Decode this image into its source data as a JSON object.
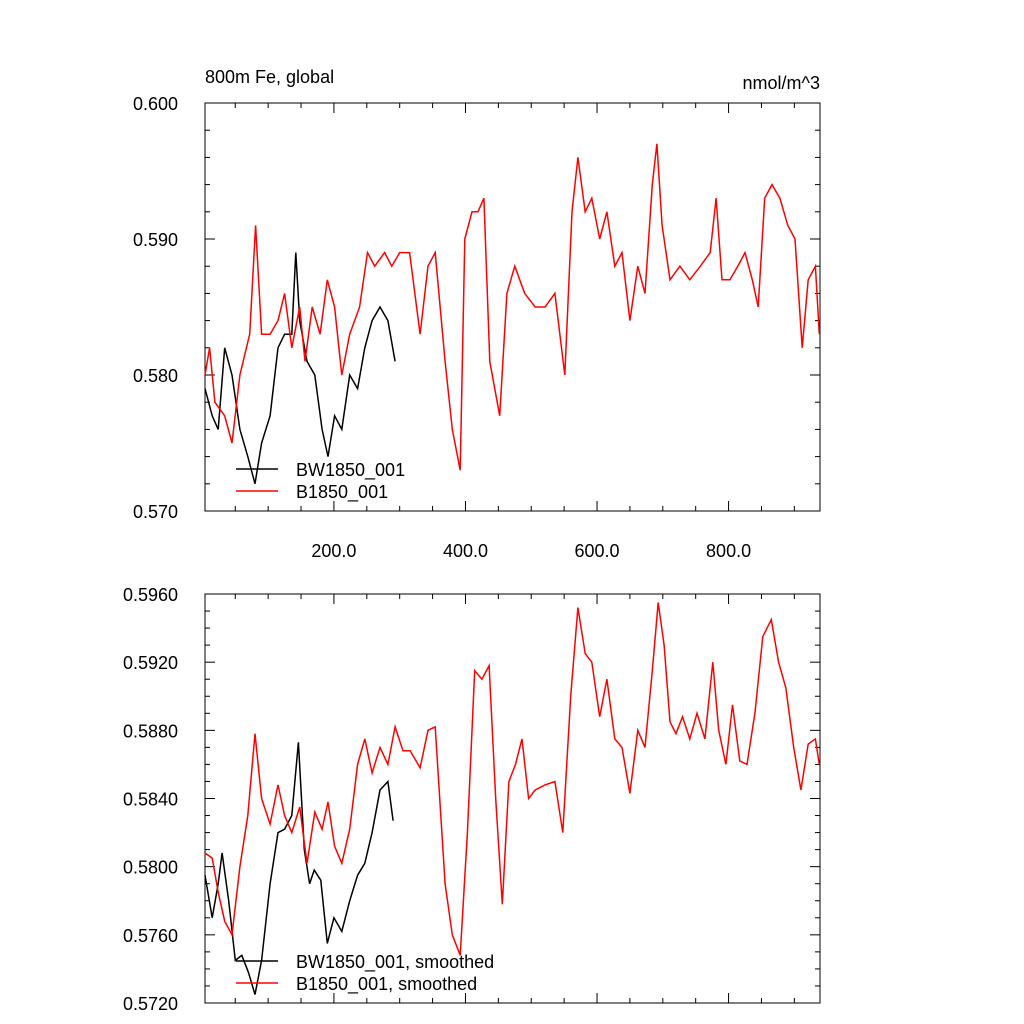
{
  "chart_data": [
    {
      "type": "line",
      "title": "800m Fe, global",
      "units": "nmol/m^3",
      "xlim": [
        4,
        939
      ],
      "ylim": [
        0.57,
        0.6
      ],
      "xticks": [
        {
          "value": 200,
          "label": "200.0"
        },
        {
          "value": 400,
          "label": "400.0"
        },
        {
          "value": 600,
          "label": "600.0"
        },
        {
          "value": 800,
          "label": "800.0"
        }
      ],
      "yticks": [
        {
          "value": 0.57,
          "label": "0.570"
        },
        {
          "value": 0.58,
          "label": "0.580"
        },
        {
          "value": 0.59,
          "label": "0.590"
        },
        {
          "value": 0.6,
          "label": "0.600"
        }
      ],
      "legend": "lower left",
      "series": [
        {
          "name": "BW1850_001",
          "color": "#000000",
          "x": [
            4,
            15,
            24,
            34,
            45,
            57,
            69,
            80,
            90,
            103,
            115,
            125,
            136,
            142,
            148,
            159,
            171,
            182,
            191,
            201,
            212,
            224,
            236,
            247,
            258,
            270,
            282,
            293
          ],
          "values": [
            0.579,
            0.577,
            0.576,
            0.582,
            0.58,
            0.576,
            0.574,
            0.572,
            0.575,
            0.577,
            0.582,
            0.583,
            0.583,
            0.589,
            0.584,
            0.581,
            0.58,
            0.576,
            0.574,
            0.577,
            0.576,
            0.58,
            0.579,
            0.582,
            0.584,
            0.585,
            0.584,
            0.581
          ]
        },
        {
          "name": "B1850_001",
          "color": "#ff0000",
          "x": [
            4,
            11,
            19,
            34,
            45,
            57,
            72,
            81,
            90,
            103,
            115,
            125,
            136,
            148,
            156,
            167,
            179,
            190,
            201,
            212,
            224,
            239,
            251,
            262,
            277,
            288,
            300,
            315,
            331,
            343,
            354,
            369,
            380,
            392,
            399,
            410,
            419,
            428,
            437,
            452,
            463,
            475,
            490,
            506,
            521,
            536,
            551,
            562,
            571,
            582,
            592,
            604,
            615,
            627,
            638,
            650,
            662,
            673,
            684,
            691,
            699,
            711,
            726,
            741,
            757,
            772,
            781,
            790,
            802,
            814,
            825,
            836,
            845,
            855,
            866,
            878,
            890,
            901,
            912,
            921,
            932,
            938
          ],
          "values": [
            0.58,
            0.582,
            0.578,
            0.577,
            0.575,
            0.58,
            0.583,
            0.591,
            0.583,
            0.583,
            0.584,
            0.586,
            0.582,
            0.585,
            0.581,
            0.585,
            0.583,
            0.587,
            0.585,
            0.58,
            0.583,
            0.585,
            0.589,
            0.588,
            0.589,
            0.588,
            0.589,
            0.589,
            0.583,
            0.588,
            0.589,
            0.581,
            0.576,
            0.573,
            0.59,
            0.592,
            0.592,
            0.593,
            0.581,
            0.577,
            0.586,
            0.588,
            0.586,
            0.585,
            0.585,
            0.586,
            0.58,
            0.592,
            0.596,
            0.592,
            0.593,
            0.59,
            0.592,
            0.588,
            0.589,
            0.584,
            0.588,
            0.586,
            0.594,
            0.597,
            0.591,
            0.587,
            0.588,
            0.587,
            0.588,
            0.589,
            0.593,
            0.587,
            0.587,
            0.588,
            0.589,
            0.587,
            0.585,
            0.593,
            0.594,
            0.593,
            0.591,
            0.59,
            0.582,
            0.587,
            0.588,
            0.583
          ]
        }
      ]
    },
    {
      "type": "line",
      "xlim": [
        4,
        939
      ],
      "ylim": [
        0.572,
        0.596
      ],
      "xticks": [
        200,
        400,
        600,
        800
      ],
      "yticks": [
        {
          "value": 0.572,
          "label": "0.5720"
        },
        {
          "value": 0.576,
          "label": "0.5760"
        },
        {
          "value": 0.58,
          "label": "0.5800"
        },
        {
          "value": 0.584,
          "label": "0.5840"
        },
        {
          "value": 0.588,
          "label": "0.5880"
        },
        {
          "value": 0.592,
          "label": "0.5920"
        },
        {
          "value": 0.596,
          "label": "0.5960"
        }
      ],
      "legend": "lower left",
      "series": [
        {
          "name": "BW1850_001, smoothed",
          "color": "#000000",
          "x": [
            4,
            15,
            24,
            30,
            40,
            50,
            60,
            70,
            80,
            90,
            103,
            115,
            125,
            136,
            146,
            155,
            163,
            170,
            180,
            190,
            200,
            212,
            224,
            236,
            247,
            258,
            270,
            282,
            290
          ],
          "values": [
            0.5795,
            0.577,
            0.579,
            0.5808,
            0.578,
            0.5745,
            0.5748,
            0.5738,
            0.5725,
            0.5745,
            0.579,
            0.582,
            0.5822,
            0.583,
            0.5873,
            0.581,
            0.579,
            0.5798,
            0.5792,
            0.5755,
            0.577,
            0.5762,
            0.578,
            0.5795,
            0.5802,
            0.582,
            0.5845,
            0.585,
            0.5827
          ]
        },
        {
          "name": "B1850_001, smoothed",
          "color": "#ff0000",
          "x": [
            4,
            15,
            24,
            34,
            45,
            57,
            69,
            80,
            90,
            103,
            115,
            125,
            136,
            148,
            159,
            171,
            182,
            191,
            201,
            212,
            224,
            236,
            247,
            258,
            270,
            282,
            293,
            305,
            316,
            331,
            343,
            354,
            369,
            380,
            392,
            403,
            414,
            425,
            436,
            446,
            456,
            466,
            476,
            486,
            496,
            506,
            521,
            536,
            548,
            560,
            571,
            582,
            592,
            604,
            615,
            627,
            638,
            650,
            662,
            673,
            684,
            693,
            702,
            711,
            720,
            730,
            741,
            752,
            764,
            776,
            785,
            796,
            806,
            817,
            828,
            840,
            852,
            865,
            876,
            887,
            899,
            910,
            921,
            932,
            938
          ],
          "values": [
            0.5808,
            0.5805,
            0.5785,
            0.5768,
            0.576,
            0.58,
            0.583,
            0.5878,
            0.584,
            0.5825,
            0.5848,
            0.583,
            0.582,
            0.5835,
            0.5802,
            0.5832,
            0.5822,
            0.5838,
            0.5812,
            0.5802,
            0.5822,
            0.586,
            0.5875,
            0.5855,
            0.587,
            0.586,
            0.5882,
            0.5868,
            0.5868,
            0.5858,
            0.588,
            0.5882,
            0.579,
            0.576,
            0.5748,
            0.582,
            0.5915,
            0.591,
            0.5918,
            0.584,
            0.5778,
            0.585,
            0.586,
            0.5875,
            0.584,
            0.5845,
            0.5848,
            0.585,
            0.582,
            0.59,
            0.5952,
            0.5925,
            0.592,
            0.5888,
            0.591,
            0.5875,
            0.587,
            0.5843,
            0.588,
            0.587,
            0.5915,
            0.5955,
            0.593,
            0.5885,
            0.5878,
            0.5888,
            0.5875,
            0.589,
            0.5875,
            0.592,
            0.588,
            0.586,
            0.5895,
            0.5862,
            0.586,
            0.589,
            0.5935,
            0.5945,
            0.592,
            0.5905,
            0.587,
            0.5845,
            0.5872,
            0.5875,
            0.586
          ]
        }
      ]
    }
  ]
}
